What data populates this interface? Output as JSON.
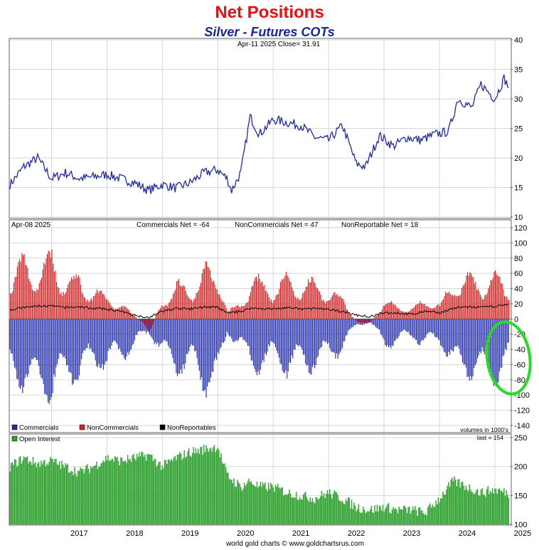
{
  "header": {
    "title": "Net Positions",
    "subtitle": "Silver - Futures COTs"
  },
  "footer": {
    "credit": "world gold charts © www.goldchartsrus.com"
  },
  "colors": {
    "price_line": "#1f2aa8",
    "commercials": "#1f2aa8",
    "noncommercials": "#d02020",
    "nonreportables": "#000000",
    "open_interest": "#2ea12e",
    "highlight_ellipse": "#22dd22",
    "title": "#e81010",
    "subtitle": "#1a24a0"
  },
  "chart_data": [
    {
      "panel": "price",
      "type": "line",
      "header_text": "Apr-11  2025   Close= 31.91",
      "ylim": [
        10,
        40
      ],
      "yticks": [
        10,
        15,
        20,
        25,
        30,
        35,
        40
      ],
      "x": [
        "2016-04",
        "2016-07",
        "2016-10",
        "2017-01",
        "2017-04",
        "2017-07",
        "2017-10",
        "2018-01",
        "2018-04",
        "2018-07",
        "2018-10",
        "2019-01",
        "2019-04",
        "2019-07",
        "2019-10",
        "2020-01",
        "2020-03",
        "2020-04",
        "2020-06",
        "2020-08",
        "2020-10",
        "2021-01",
        "2021-04",
        "2021-07",
        "2021-10",
        "2022-01",
        "2022-04",
        "2022-07",
        "2022-09",
        "2022-12",
        "2023-03",
        "2023-06",
        "2023-09",
        "2023-12",
        "2024-03",
        "2024-05",
        "2024-08",
        "2024-10",
        "2025-01",
        "2025-03",
        "2025-04"
      ],
      "y": [
        15.5,
        18.5,
        20.0,
        16.5,
        17.5,
        16.5,
        16.8,
        17.2,
        16.5,
        15.8,
        14.5,
        15.5,
        14.9,
        15.8,
        17.5,
        18.0,
        16.5,
        14.5,
        17.5,
        27.0,
        24.0,
        26.5,
        26.0,
        25.5,
        23.5,
        23.0,
        25.5,
        19.0,
        18.5,
        23.8,
        22.0,
        23.5,
        23.0,
        24.0,
        24.5,
        30.0,
        28.5,
        32.5,
        30.0,
        33.5,
        31.91
      ]
    },
    {
      "panel": "net_positions",
      "type": "bar",
      "header_left": "Apr-08  2025",
      "header_stats": [
        "Commercials Net = -64",
        "NonCommercials Net = 47",
        "NonReportable Net = 18"
      ],
      "ylim": [
        -140,
        120
      ],
      "yticks": [
        -140,
        -120,
        -100,
        -80,
        -60,
        -40,
        -20,
        0,
        20,
        40,
        60,
        80,
        100,
        120
      ],
      "ytick_labels": [
        "-140",
        "-120",
        "-100",
        "-80",
        "-60",
        "-40",
        "-20",
        "0",
        "20",
        "40",
        "60",
        "80",
        "100",
        "120"
      ],
      "legend": [
        "Commercials",
        "NonCommercials",
        "NonReportables"
      ],
      "note": "volumes in 1000's",
      "x": [
        "2016-04",
        "2016-07",
        "2016-10",
        "2017-01",
        "2017-04",
        "2017-07",
        "2017-10",
        "2018-01",
        "2018-04",
        "2018-07",
        "2018-10",
        "2019-01",
        "2019-04",
        "2019-07",
        "2019-10",
        "2020-01",
        "2020-03",
        "2020-06",
        "2020-08",
        "2020-10",
        "2021-01",
        "2021-04",
        "2021-07",
        "2021-10",
        "2022-01",
        "2022-04",
        "2022-07",
        "2022-10",
        "2023-01",
        "2023-04",
        "2023-07",
        "2023-10",
        "2024-01",
        "2024-04",
        "2024-07",
        "2024-10",
        "2025-01",
        "2025-04"
      ],
      "series": [
        {
          "name": "Commercials",
          "values": [
            -70,
            -95,
            -100,
            -110,
            -80,
            -85,
            -60,
            -70,
            -55,
            -40,
            -20,
            -50,
            -75,
            -70,
            -95,
            -95,
            -20,
            -40,
            -70,
            -70,
            -60,
            -75,
            -65,
            -70,
            -55,
            -45,
            -10,
            -5,
            -40,
            -35,
            -25,
            -40,
            -30,
            -70,
            -75,
            -80,
            -90,
            -64
          ]
        },
        {
          "name": "NonCommercials",
          "values": [
            60,
            85,
            70,
            95,
            55,
            60,
            40,
            35,
            20,
            5,
            -20,
            30,
            50,
            45,
            70,
            70,
            10,
            25,
            55,
            55,
            45,
            60,
            50,
            55,
            40,
            30,
            -5,
            -5,
            25,
            20,
            15,
            30,
            20,
            55,
            60,
            55,
            60,
            47
          ]
        },
        {
          "name": "NonReportables",
          "values": [
            12,
            15,
            17,
            17,
            15,
            16,
            14,
            13,
            10,
            5,
            2,
            10,
            14,
            13,
            16,
            15,
            8,
            10,
            14,
            14,
            13,
            15,
            13,
            14,
            12,
            10,
            5,
            3,
            8,
            8,
            6,
            10,
            8,
            14,
            16,
            15,
            17,
            18
          ]
        }
      ]
    },
    {
      "panel": "open_interest",
      "type": "bar",
      "legend": [
        "Open Interest"
      ],
      "header_right": "last = 154",
      "ylim": [
        100,
        255
      ],
      "yticks": [
        100,
        150,
        200,
        250
      ],
      "x": [
        "2016-04",
        "2016-07",
        "2016-10",
        "2017-01",
        "2017-04",
        "2017-07",
        "2017-10",
        "2018-01",
        "2018-04",
        "2018-07",
        "2018-10",
        "2019-01",
        "2019-04",
        "2019-07",
        "2019-10",
        "2020-01",
        "2020-03",
        "2020-06",
        "2020-08",
        "2020-10",
        "2021-01",
        "2021-04",
        "2021-07",
        "2021-10",
        "2022-01",
        "2022-04",
        "2022-07",
        "2022-10",
        "2023-01",
        "2023-04",
        "2023-07",
        "2023-10",
        "2024-01",
        "2024-04",
        "2024-07",
        "2024-10",
        "2025-01",
        "2025-04"
      ],
      "values": [
        200,
        215,
        205,
        210,
        200,
        190,
        200,
        215,
        210,
        215,
        220,
        200,
        215,
        225,
        230,
        235,
        185,
        165,
        175,
        165,
        165,
        155,
        150,
        145,
        155,
        145,
        130,
        125,
        130,
        125,
        125,
        120,
        145,
        175,
        165,
        155,
        160,
        154
      ]
    }
  ],
  "time_axis": {
    "labels": [
      "2017",
      "2018",
      "2019",
      "2020",
      "2021",
      "2022",
      "2023",
      "2024",
      "2025"
    ],
    "ticks": [
      "2017-01",
      "2018-01",
      "2019-01",
      "2020-01",
      "2021-01",
      "2022-01",
      "2023-01",
      "2024-01",
      "2025-01"
    ],
    "range": [
      "2016-04",
      "2025-04"
    ]
  }
}
